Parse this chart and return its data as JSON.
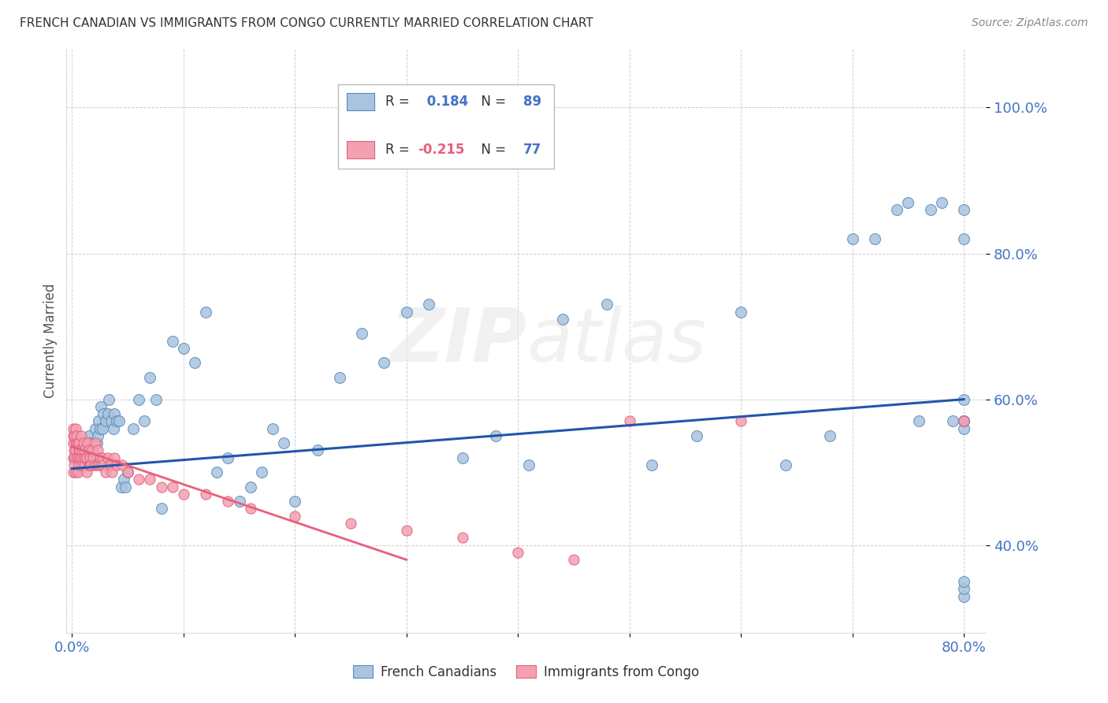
{
  "title": "FRENCH CANADIAN VS IMMIGRANTS FROM CONGO CURRENTLY MARRIED CORRELATION CHART",
  "source": "Source: ZipAtlas.com",
  "ylabel": "Currently Married",
  "xlim": [
    -0.005,
    0.82
  ],
  "ylim": [
    0.28,
    1.08
  ],
  "yticks": [
    0.4,
    0.6,
    0.8,
    1.0
  ],
  "ytick_labels": [
    "40.0%",
    "60.0%",
    "80.0%",
    "100.0%"
  ],
  "xticks": [
    0.0,
    0.1,
    0.2,
    0.3,
    0.4,
    0.5,
    0.6,
    0.7,
    0.8
  ],
  "xtick_labels": [
    "0.0%",
    "",
    "",
    "",
    "",
    "",
    "",
    "",
    "80.0%"
  ],
  "blue_R": 0.184,
  "blue_N": 89,
  "pink_R": -0.215,
  "pink_N": 77,
  "blue_color": "#A8C4E0",
  "pink_color": "#F4A0B0",
  "blue_edge_color": "#5B8DB8",
  "pink_edge_color": "#E06080",
  "blue_line_color": "#2255AA",
  "pink_line_color": "#E8607A",
  "axis_color": "#4472C4",
  "grid_color": "#BBBBBB",
  "background_color": "#FFFFFF",
  "title_color": "#333333",
  "watermark": "ZIPatlas",
  "legend_label_blue": "French Canadians",
  "legend_label_pink": "Immigrants from Congo",
  "blue_x": [
    0.007,
    0.009,
    0.01,
    0.011,
    0.012,
    0.013,
    0.013,
    0.014,
    0.015,
    0.015,
    0.016,
    0.016,
    0.017,
    0.018,
    0.018,
    0.019,
    0.02,
    0.021,
    0.022,
    0.022,
    0.023,
    0.024,
    0.025,
    0.026,
    0.027,
    0.028,
    0.03,
    0.032,
    0.033,
    0.035,
    0.037,
    0.038,
    0.04,
    0.042,
    0.044,
    0.046,
    0.048,
    0.05,
    0.055,
    0.06,
    0.065,
    0.07,
    0.075,
    0.08,
    0.09,
    0.1,
    0.11,
    0.12,
    0.13,
    0.14,
    0.15,
    0.16,
    0.17,
    0.18,
    0.19,
    0.2,
    0.22,
    0.24,
    0.26,
    0.28,
    0.3,
    0.32,
    0.35,
    0.38,
    0.41,
    0.44,
    0.48,
    0.52,
    0.56,
    0.6,
    0.64,
    0.68,
    0.7,
    0.72,
    0.74,
    0.75,
    0.76,
    0.77,
    0.78,
    0.79,
    0.8,
    0.8,
    0.8,
    0.8,
    0.8,
    0.8,
    0.8,
    0.8,
    0.8
  ],
  "blue_y": [
    0.52,
    0.51,
    0.53,
    0.52,
    0.54,
    0.53,
    0.51,
    0.52,
    0.52,
    0.55,
    0.52,
    0.54,
    0.51,
    0.52,
    0.53,
    0.52,
    0.52,
    0.56,
    0.54,
    0.52,
    0.55,
    0.57,
    0.56,
    0.59,
    0.56,
    0.58,
    0.57,
    0.58,
    0.6,
    0.57,
    0.56,
    0.58,
    0.57,
    0.57,
    0.48,
    0.49,
    0.48,
    0.5,
    0.56,
    0.6,
    0.57,
    0.63,
    0.6,
    0.45,
    0.68,
    0.67,
    0.65,
    0.72,
    0.5,
    0.52,
    0.46,
    0.48,
    0.5,
    0.56,
    0.54,
    0.46,
    0.53,
    0.63,
    0.69,
    0.65,
    0.72,
    0.73,
    0.52,
    0.55,
    0.51,
    0.71,
    0.73,
    0.51,
    0.55,
    0.72,
    0.51,
    0.55,
    0.82,
    0.82,
    0.86,
    0.87,
    0.57,
    0.86,
    0.87,
    0.57,
    0.33,
    0.57,
    0.34,
    0.35,
    0.56,
    0.82,
    0.86,
    0.57,
    0.6
  ],
  "pink_x": [
    0.001,
    0.001,
    0.001,
    0.001,
    0.001,
    0.002,
    0.002,
    0.002,
    0.002,
    0.003,
    0.003,
    0.003,
    0.003,
    0.004,
    0.004,
    0.004,
    0.005,
    0.005,
    0.005,
    0.006,
    0.006,
    0.006,
    0.007,
    0.007,
    0.008,
    0.008,
    0.009,
    0.009,
    0.01,
    0.01,
    0.011,
    0.011,
    0.012,
    0.013,
    0.013,
    0.014,
    0.015,
    0.015,
    0.016,
    0.016,
    0.017,
    0.018,
    0.019,
    0.02,
    0.021,
    0.022,
    0.023,
    0.024,
    0.025,
    0.026,
    0.027,
    0.028,
    0.03,
    0.032,
    0.034,
    0.036,
    0.038,
    0.04,
    0.045,
    0.05,
    0.06,
    0.07,
    0.08,
    0.09,
    0.1,
    0.12,
    0.14,
    0.16,
    0.2,
    0.25,
    0.3,
    0.35,
    0.4,
    0.45,
    0.5,
    0.6,
    0.8
  ],
  "pink_y": [
    0.56,
    0.54,
    0.52,
    0.55,
    0.5,
    0.53,
    0.55,
    0.52,
    0.51,
    0.54,
    0.56,
    0.5,
    0.53,
    0.54,
    0.52,
    0.55,
    0.54,
    0.52,
    0.5,
    0.53,
    0.51,
    0.54,
    0.53,
    0.52,
    0.52,
    0.55,
    0.51,
    0.53,
    0.52,
    0.54,
    0.51,
    0.53,
    0.52,
    0.5,
    0.52,
    0.54,
    0.51,
    0.53,
    0.51,
    0.52,
    0.51,
    0.53,
    0.52,
    0.51,
    0.54,
    0.51,
    0.53,
    0.51,
    0.52,
    0.51,
    0.52,
    0.51,
    0.5,
    0.52,
    0.51,
    0.5,
    0.52,
    0.51,
    0.51,
    0.5,
    0.49,
    0.49,
    0.48,
    0.48,
    0.47,
    0.47,
    0.46,
    0.45,
    0.44,
    0.43,
    0.42,
    0.41,
    0.39,
    0.38,
    0.57,
    0.57,
    0.57
  ],
  "pink_line_x": [
    0.0,
    0.3
  ],
  "pink_line_y": [
    0.535,
    0.38
  ],
  "blue_line_x": [
    0.0,
    0.8
  ],
  "blue_line_y": [
    0.505,
    0.6
  ]
}
